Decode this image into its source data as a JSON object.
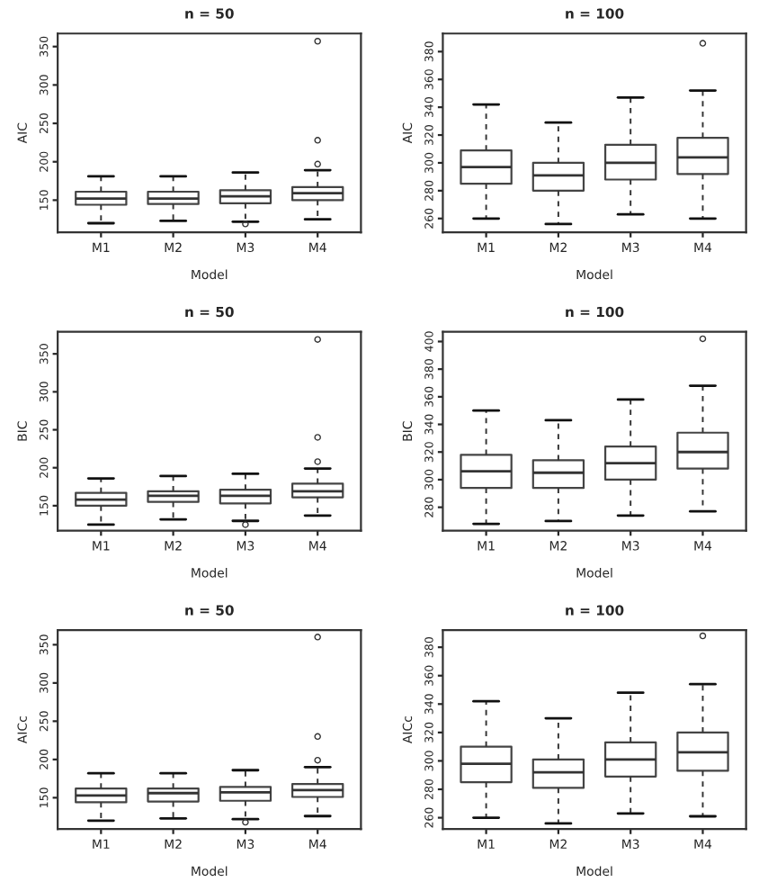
{
  "chart_data": [
    {
      "type": "box",
      "title": "n = 50",
      "xlabel": "Model",
      "ylabel": "AIC",
      "categories": [
        "M1",
        "M2",
        "M3",
        "M4"
      ],
      "ylim": [
        108,
        367
      ],
      "yticks": [
        150,
        200,
        250,
        300,
        350
      ],
      "grid": false,
      "boxes": [
        {
          "low": 120,
          "q1": 144,
          "median": 152,
          "q3": 161,
          "high": 181
        },
        {
          "low": 123,
          "q1": 145,
          "median": 152,
          "q3": 161,
          "high": 181
        },
        {
          "low": 122,
          "q1": 146,
          "median": 155,
          "q3": 163,
          "high": 186,
          "outliers": [
            119
          ]
        },
        {
          "low": 125,
          "q1": 150,
          "median": 159,
          "q3": 167,
          "high": 189,
          "outliers": [
            197,
            228,
            357
          ]
        }
      ]
    },
    {
      "type": "box",
      "title": "n = 100",
      "xlabel": "Model",
      "ylabel": "AIC",
      "categories": [
        "M1",
        "M2",
        "M3",
        "M4"
      ],
      "ylim": [
        250,
        393
      ],
      "yticks": [
        260,
        280,
        300,
        320,
        340,
        360,
        380
      ],
      "grid": false,
      "boxes": [
        {
          "low": 260,
          "q1": 285,
          "median": 297,
          "q3": 309,
          "high": 342
        },
        {
          "low": 256,
          "q1": 280,
          "median": 291,
          "q3": 300,
          "high": 329
        },
        {
          "low": 263,
          "q1": 288,
          "median": 300,
          "q3": 313,
          "high": 347
        },
        {
          "low": 260,
          "q1": 292,
          "median": 304,
          "q3": 318,
          "high": 352,
          "outliers": [
            386
          ]
        }
      ]
    },
    {
      "type": "box",
      "title": "n = 50",
      "xlabel": "Model",
      "ylabel": "BIC",
      "categories": [
        "M1",
        "M2",
        "M3",
        "M4"
      ],
      "ylim": [
        117,
        379
      ],
      "yticks": [
        150,
        200,
        250,
        300,
        350
      ],
      "grid": false,
      "boxes": [
        {
          "low": 125,
          "q1": 150,
          "median": 158,
          "q3": 167,
          "high": 186
        },
        {
          "low": 132,
          "q1": 155,
          "median": 163,
          "q3": 169,
          "high": 189
        },
        {
          "low": 130,
          "q1": 153,
          "median": 163,
          "q3": 171,
          "high": 192,
          "outliers": [
            125
          ]
        },
        {
          "low": 137,
          "q1": 161,
          "median": 169,
          "q3": 179,
          "high": 199,
          "outliers": [
            208,
            240,
            369
          ]
        }
      ]
    },
    {
      "type": "box",
      "title": "n = 100",
      "xlabel": "Model",
      "ylabel": "BIC",
      "categories": [
        "M1",
        "M2",
        "M3",
        "M4"
      ],
      "ylim": [
        263,
        407
      ],
      "yticks": [
        280,
        300,
        320,
        340,
        360,
        380,
        400
      ],
      "grid": false,
      "boxes": [
        {
          "low": 268,
          "q1": 294,
          "median": 306,
          "q3": 318,
          "high": 350
        },
        {
          "low": 270,
          "q1": 294,
          "median": 305,
          "q3": 314,
          "high": 343
        },
        {
          "low": 274,
          "q1": 300,
          "median": 312,
          "q3": 324,
          "high": 358
        },
        {
          "low": 277,
          "q1": 308,
          "median": 320,
          "q3": 334,
          "high": 368,
          "outliers": [
            402
          ]
        }
      ]
    },
    {
      "type": "box",
      "title": "n = 50",
      "xlabel": "Model",
      "ylabel": "AICc",
      "categories": [
        "M1",
        "M2",
        "M3",
        "M4"
      ],
      "ylim": [
        109,
        369
      ],
      "yticks": [
        150,
        200,
        250,
        300,
        350
      ],
      "grid": false,
      "boxes": [
        {
          "low": 120,
          "q1": 144,
          "median": 153,
          "q3": 162,
          "high": 182
        },
        {
          "low": 123,
          "q1": 145,
          "median": 156,
          "q3": 162,
          "high": 182
        },
        {
          "low": 122,
          "q1": 146,
          "median": 157,
          "q3": 164,
          "high": 186,
          "outliers": [
            118
          ]
        },
        {
          "low": 126,
          "q1": 151,
          "median": 160,
          "q3": 168,
          "high": 190,
          "outliers": [
            199,
            230,
            360
          ]
        }
      ]
    },
    {
      "type": "box",
      "title": "n = 100",
      "xlabel": "Model",
      "ylabel": "AICc",
      "categories": [
        "M1",
        "M2",
        "M3",
        "M4"
      ],
      "ylim": [
        252,
        392
      ],
      "yticks": [
        260,
        280,
        300,
        320,
        340,
        360,
        380
      ],
      "grid": false,
      "boxes": [
        {
          "low": 260,
          "q1": 285,
          "median": 298,
          "q3": 310,
          "high": 342
        },
        {
          "low": 256,
          "q1": 281,
          "median": 292,
          "q3": 301,
          "high": 330
        },
        {
          "low": 263,
          "q1": 289,
          "median": 301,
          "q3": 313,
          "high": 348
        },
        {
          "low": 261,
          "q1": 293,
          "median": 306,
          "q3": 320,
          "high": 354,
          "outliers": [
            388
          ]
        }
      ]
    }
  ]
}
